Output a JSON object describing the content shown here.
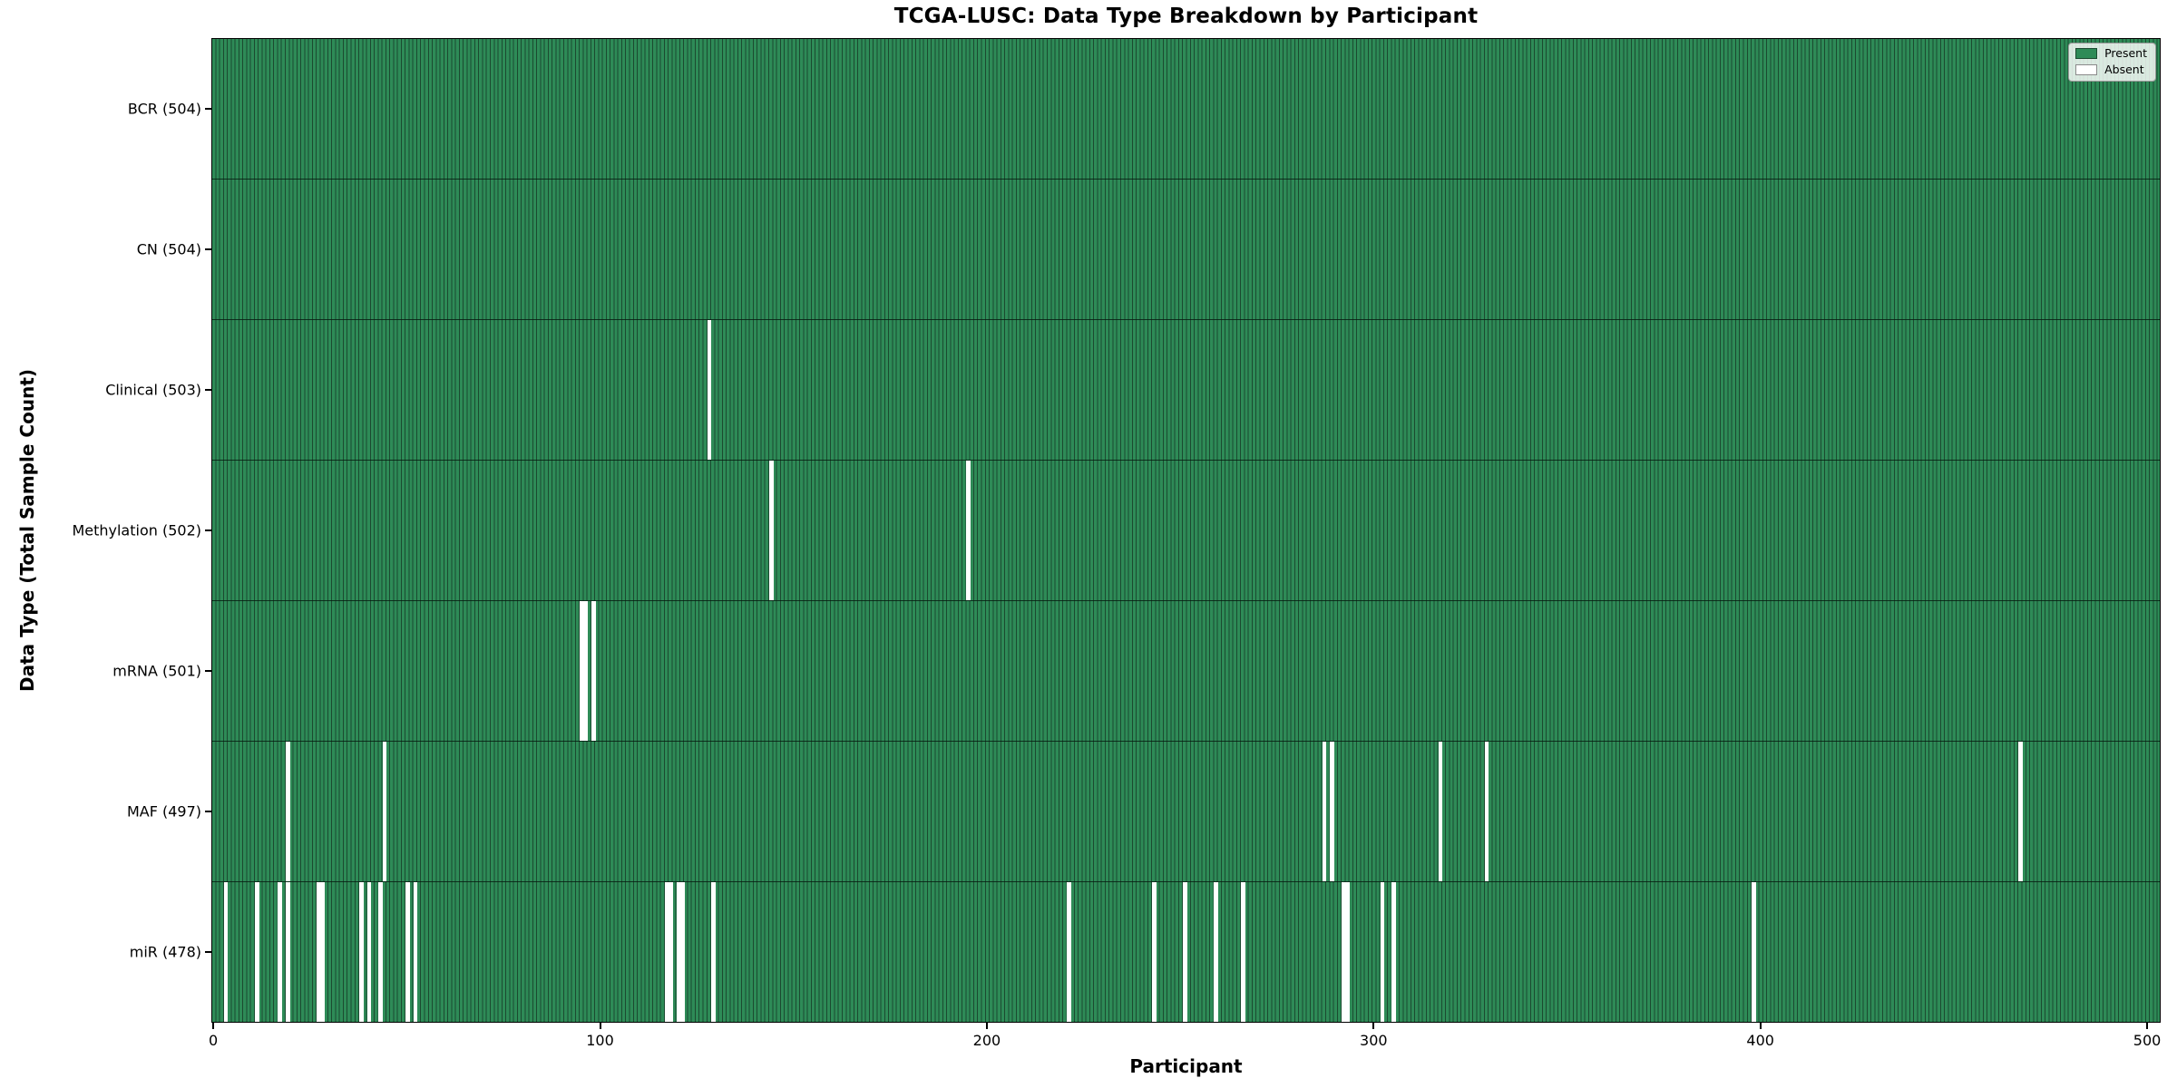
{
  "chart_data": {
    "type": "heatmap",
    "title": "TCGA-LUSC: Data Type Breakdown by Participant",
    "xlabel": "Participant",
    "ylabel": "Data Type (Total Sample Count)",
    "n_participants": 504,
    "x_ticks": [
      0,
      100,
      200,
      300,
      400,
      500
    ],
    "xlim": [
      0,
      504
    ],
    "grid": false,
    "legend_position": "upper right",
    "legend": [
      {
        "label": "Present",
        "color": "#2E8B57"
      },
      {
        "label": "Absent",
        "color": "#FFFFFF"
      }
    ],
    "colors": {
      "present_fill": "#2E8B57",
      "present_edge": "#1B4A30",
      "absent_fill": "#FFFFFF",
      "row_separator": "#0B2418",
      "text": "#000000"
    },
    "rows": [
      {
        "label": "BCR (504)",
        "data_type": "BCR",
        "total": 504,
        "absent_participants": []
      },
      {
        "label": "CN (504)",
        "data_type": "CN",
        "total": 504,
        "absent_participants": []
      },
      {
        "label": "Clinical (503)",
        "data_type": "Clinical",
        "total": 503,
        "absent_participants": [
          128
        ]
      },
      {
        "label": "Methylation (502)",
        "data_type": "Methylation",
        "total": 502,
        "absent_participants": [
          144,
          195
        ]
      },
      {
        "label": "mRNA (501)",
        "data_type": "mRNA",
        "total": 501,
        "absent_participants": [
          95,
          96,
          98
        ]
      },
      {
        "label": "MAF (497)",
        "data_type": "MAF",
        "total": 497,
        "absent_participants": [
          19,
          44,
          287,
          289,
          317,
          329,
          467
        ]
      },
      {
        "label": "miR (478)",
        "data_type": "miR",
        "total": 478,
        "absent_participants": [
          3,
          11,
          17,
          19,
          27,
          28,
          38,
          40,
          43,
          50,
          52,
          117,
          118,
          120,
          121,
          129,
          221,
          243,
          251,
          259,
          266,
          292,
          293,
          302,
          305,
          398
        ]
      }
    ]
  }
}
